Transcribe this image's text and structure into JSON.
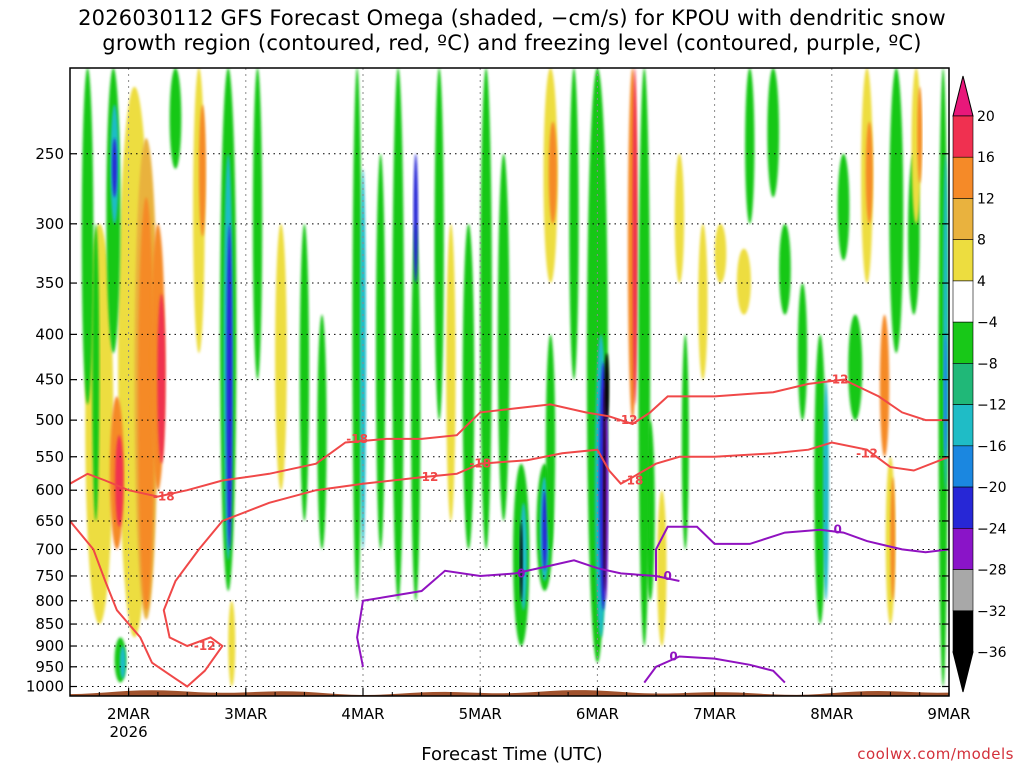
{
  "chart_data": {
    "type": "heatmap",
    "title_line1": "2026030112 GFS Forecast Omega (shaded, −cm/s) for KPOU with dendritic snow",
    "title_line2": "growth region (contoured, red, ºC) and freezing level (contoured, purple, ºC)",
    "xlabel": "Forecast Time (UTC)",
    "x_ticks": [
      "2MAR",
      "3MAR",
      "4MAR",
      "5MAR",
      "6MAR",
      "7MAR",
      "8MAR",
      "9MAR"
    ],
    "x_tick_sub": "2026",
    "x_range_days": [
      1.5,
      9.0
    ],
    "y_ticks": [
      250,
      300,
      350,
      400,
      450,
      500,
      550,
      600,
      650,
      700,
      750,
      800,
      850,
      900,
      950,
      1000
    ],
    "y_range_hpa": [
      200,
      1025
    ],
    "colorbar": {
      "labels": [
        "20",
        "16",
        "12",
        "8",
        "4",
        "−4",
        "−8",
        "−12",
        "−16",
        "−20",
        "−24",
        "−28",
        "−32",
        "−36"
      ],
      "colors": [
        "#f03050",
        "#f58a28",
        "#e9b23e",
        "#eddd3f",
        "#ffffff",
        "#18c818",
        "#20b878",
        "#1fbcc6",
        "#1b87e0",
        "#2727d6",
        "#8a14c8",
        "#a8a8a8",
        "#000000"
      ],
      "top_arrow_color": "#e8187a",
      "bottom_arrow_color": "#000000"
    },
    "contours": {
      "dendritic_color": "#f04848",
      "freezing_color": "#9012c0",
      "labels": [
        "-18",
        "-12",
        "-18",
        "-12",
        "-18",
        "-12",
        "-18",
        "-12",
        "-12",
        "0",
        "0",
        "0",
        "0"
      ]
    },
    "ground_color": "#a0522d"
  },
  "credit": "coolwx.com/models"
}
